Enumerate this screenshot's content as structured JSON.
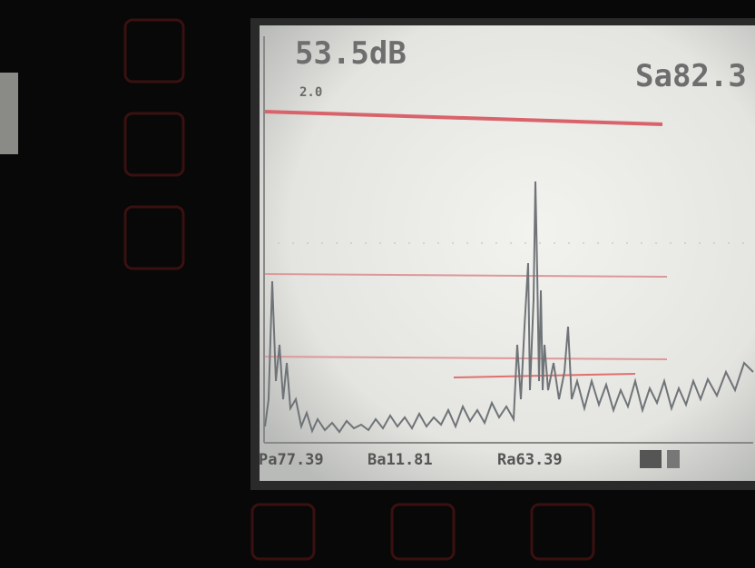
{
  "screen": {
    "gain": "53.5dB",
    "range": "2.0",
    "sound_path": "Sa82.3",
    "readouts": [
      "Pa77.39",
      "Ba11.81",
      "Ra63.39"
    ]
  }
}
